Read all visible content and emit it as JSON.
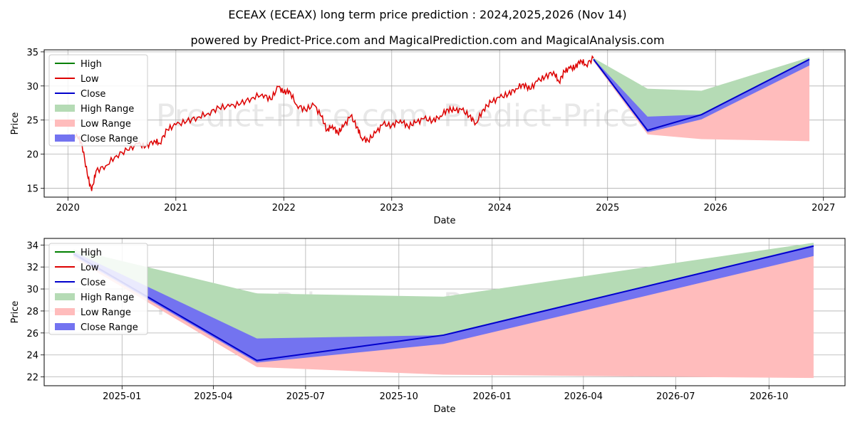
{
  "title_line1": "ECEAX (ECEAX) long term price prediction : 2024,2025,2026 (Nov 14)",
  "title_line2": "powered by Predict-Price.com and MagicalPrediction.com and MagicalAnalysis.com",
  "watermark": "Predict-Price.com",
  "colors": {
    "high": "#008000",
    "low": "#dd0000",
    "close": "#0000cc",
    "high_range": "#b5dbb5",
    "low_range": "#ffbcbc",
    "close_range": "#7373f0"
  },
  "legend": [
    "High",
    "Low",
    "Close",
    "High Range",
    "Low Range",
    "Close Range"
  ],
  "chart_data": [
    {
      "type": "line",
      "xlabel": "Date",
      "ylabel": "Price",
      "xlim": [
        2019.78,
        2027.2
      ],
      "ylim": [
        13.7,
        35.3
      ],
      "x_ticks": [
        "2020",
        "2021",
        "2022",
        "2023",
        "2024",
        "2025",
        "2026",
        "2027"
      ],
      "y_ticks": [
        15,
        20,
        25,
        30,
        35
      ],
      "grid": true,
      "legend_position": "top-left",
      "history_low": [
        [
          2020.0,
          22.4
        ],
        [
          2020.08,
          22.9
        ],
        [
          2020.13,
          21.5
        ],
        [
          2020.18,
          17.0
        ],
        [
          2020.22,
          14.6
        ],
        [
          2020.26,
          17.5
        ],
        [
          2020.35,
          18.3
        ],
        [
          2020.45,
          19.8
        ],
        [
          2020.55,
          20.6
        ],
        [
          2020.65,
          21.5
        ],
        [
          2020.72,
          21.1
        ],
        [
          2020.8,
          22.0
        ],
        [
          2020.85,
          21.6
        ],
        [
          2020.92,
          23.6
        ],
        [
          2021.0,
          24.3
        ],
        [
          2021.1,
          24.8
        ],
        [
          2021.2,
          25.4
        ],
        [
          2021.3,
          26.0
        ],
        [
          2021.4,
          26.8
        ],
        [
          2021.5,
          27.0
        ],
        [
          2021.6,
          27.4
        ],
        [
          2021.7,
          28.2
        ],
        [
          2021.8,
          28.8
        ],
        [
          2021.88,
          28.0
        ],
        [
          2021.95,
          29.9
        ],
        [
          2022.0,
          29.0
        ],
        [
          2022.05,
          29.3
        ],
        [
          2022.12,
          27.2
        ],
        [
          2022.2,
          26.5
        ],
        [
          2022.28,
          27.2
        ],
        [
          2022.35,
          25.5
        ],
        [
          2022.4,
          23.5
        ],
        [
          2022.45,
          24.2
        ],
        [
          2022.5,
          23.1
        ],
        [
          2022.55,
          24.0
        ],
        [
          2022.62,
          25.6
        ],
        [
          2022.68,
          24.0
        ],
        [
          2022.72,
          22.4
        ],
        [
          2022.78,
          22.0
        ],
        [
          2022.85,
          23.1
        ],
        [
          2022.92,
          24.4
        ],
        [
          2023.0,
          24.2
        ],
        [
          2023.08,
          25.0
        ],
        [
          2023.15,
          24.1
        ],
        [
          2023.22,
          24.6
        ],
        [
          2023.3,
          25.2
        ],
        [
          2023.38,
          24.9
        ],
        [
          2023.45,
          25.6
        ],
        [
          2023.52,
          26.6
        ],
        [
          2023.58,
          26.4
        ],
        [
          2023.65,
          26.5
        ],
        [
          2023.72,
          25.6
        ],
        [
          2023.78,
          24.5
        ],
        [
          2023.85,
          26.6
        ],
        [
          2023.92,
          27.6
        ],
        [
          2024.0,
          28.3
        ],
        [
          2024.08,
          28.8
        ],
        [
          2024.15,
          29.6
        ],
        [
          2024.22,
          30.3
        ],
        [
          2024.28,
          29.5
        ],
        [
          2024.35,
          30.7
        ],
        [
          2024.42,
          31.3
        ],
        [
          2024.5,
          32.1
        ],
        [
          2024.55,
          30.6
        ],
        [
          2024.6,
          32.1
        ],
        [
          2024.65,
          32.6
        ],
        [
          2024.7,
          32.7
        ],
        [
          2024.75,
          33.8
        ],
        [
          2024.8,
          33.1
        ],
        [
          2024.87,
          34.1
        ]
      ],
      "forecast": {
        "x": [
          2024.87,
          2025.37,
          2025.87,
          2026.87
        ],
        "high_range_top": [
          34.1,
          29.6,
          29.3,
          34.2
        ],
        "close_range_top": [
          34.0,
          25.5,
          25.8,
          34.0
        ],
        "close": [
          33.9,
          23.5,
          25.8,
          33.9
        ],
        "close_range_bottom": [
          33.8,
          23.2,
          25.1,
          33.0
        ],
        "low_range_bottom": [
          33.6,
          22.9,
          22.2,
          21.9
        ]
      }
    },
    {
      "type": "area",
      "xlabel": "Date",
      "ylabel": "Price",
      "xlim": [
        "2024-10-16",
        "2026-12-15"
      ],
      "ylim": [
        21.2,
        34.6
      ],
      "x_ticks": [
        "2025-01",
        "2025-04",
        "2025-07",
        "2025-10",
        "2026-01",
        "2026-04",
        "2026-07",
        "2026-10"
      ],
      "y_ticks": [
        22,
        24,
        26,
        28,
        30,
        32,
        34
      ],
      "grid": true,
      "legend_position": "top-left",
      "forecast": {
        "x": [
          "2024-11-14",
          "2025-05-14",
          "2025-11-14",
          "2026-11-14"
        ],
        "high_range_top": [
          33.6,
          29.6,
          29.3,
          34.2
        ],
        "close_range_top": [
          33.4,
          25.5,
          25.8,
          34.0
        ],
        "close": [
          33.2,
          23.5,
          25.8,
          33.9
        ],
        "close_range_bottom": [
          33.0,
          23.3,
          25.0,
          33.0
        ],
        "low_range_bottom": [
          32.8,
          22.9,
          22.2,
          21.9
        ]
      }
    }
  ]
}
